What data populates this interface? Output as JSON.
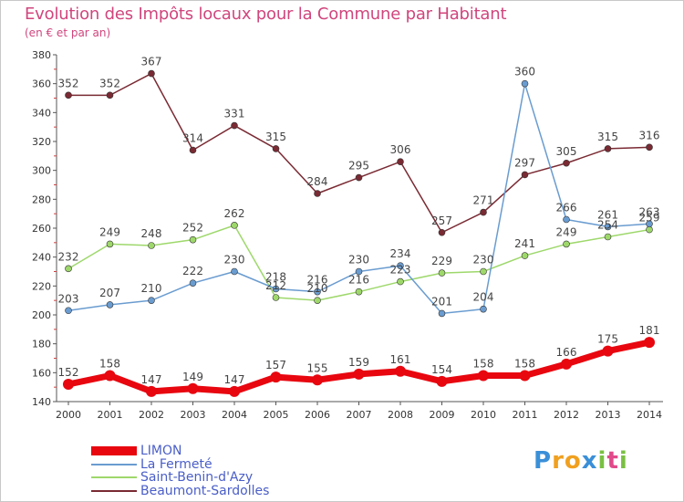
{
  "chart_data": {
    "type": "line",
    "title": "Evolution des Impôts locaux pour la Commune par Habitant",
    "subtitle": "(en € et par an)",
    "xlabel": "",
    "ylabel": "",
    "ylim": [
      140,
      380
    ],
    "yticks": [
      140,
      160,
      180,
      200,
      220,
      240,
      260,
      280,
      300,
      320,
      340,
      360,
      380
    ],
    "categories": [
      "2000",
      "2001",
      "2002",
      "2003",
      "2004",
      "2005",
      "2006",
      "2007",
      "2008",
      "2009",
      "2010",
      "2011",
      "2012",
      "2013",
      "2014"
    ],
    "series": [
      {
        "name": "LIMON",
        "color": "#e8060f",
        "values": [
          152,
          158,
          147,
          149,
          147,
          157,
          155,
          159,
          161,
          154,
          158,
          158,
          166,
          175,
          181
        ]
      },
      {
        "name": "La Fermeté",
        "color": "#6a9cd0",
        "values": [
          203,
          207,
          210,
          222,
          230,
          218,
          216,
          230,
          234,
          201,
          204,
          360,
          266,
          261,
          263
        ]
      },
      {
        "name": "Saint-Benin-d'Azy",
        "color": "#9ed86b",
        "values": [
          232,
          249,
          248,
          252,
          262,
          212,
          210,
          216,
          223,
          229,
          230,
          241,
          249,
          254,
          259
        ]
      },
      {
        "name": "Beaumont-Sardolles",
        "color": "#7a2a33",
        "values": [
          352,
          352,
          367,
          314,
          331,
          315,
          284,
          295,
          306,
          257,
          271,
          297,
          305,
          315,
          316
        ]
      }
    ],
    "legend": "bottom-left",
    "grid": false
  },
  "logo": {
    "letters": [
      "P",
      "r",
      "o",
      "x",
      "i",
      "t",
      "i"
    ],
    "colors": [
      "#3a8fd8",
      "#f0a020",
      "#f0a020",
      "#3a8fd8",
      "#7ac043",
      "#e04a8a",
      "#7ac043"
    ]
  }
}
